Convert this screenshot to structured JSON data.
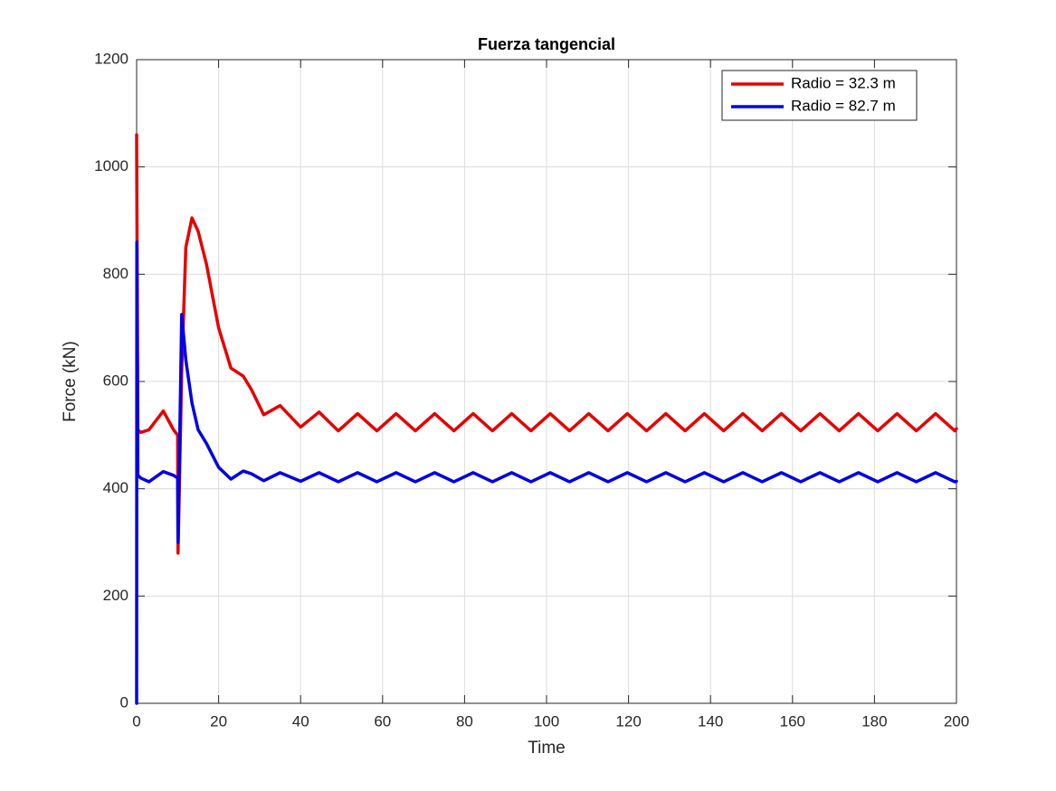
{
  "chart_data": {
    "type": "line",
    "title": "Fuerza tangencial",
    "xlabel": "Time",
    "ylabel": "Force (kN)",
    "x": [
      0,
      0.05,
      0.3,
      1,
      3,
      6.5,
      9,
      10,
      10.1,
      11,
      12,
      13.5,
      15,
      17,
      20,
      23,
      26,
      28,
      31,
      35,
      40,
      44.5,
      49.2,
      53.9,
      58.6,
      63.3,
      68.0,
      72.7,
      77.4,
      82.1,
      86.8,
      91.5,
      96.2,
      100.9,
      105.6,
      110.3,
      115.0,
      119.7,
      124.4,
      129.1,
      133.8,
      138.5,
      143.2,
      147.9,
      152.6,
      157.3,
      162.0,
      166.7,
      171.4,
      176.1,
      180.8,
      185.5,
      190.2,
      194.9,
      199.6,
      200
    ],
    "series": [
      {
        "name": "Radio = 32.3 m",
        "color": "#e60000",
        "values": [
          1060,
          950,
          510,
          505,
          510,
          545,
          510,
          500,
          280,
          620,
          850,
          905,
          880,
          820,
          700,
          625,
          610,
          585,
          538,
          555,
          515,
          543,
          508,
          540,
          508,
          540,
          508,
          540,
          508,
          540,
          508,
          540,
          508,
          540,
          508,
          540,
          508,
          540,
          508,
          540,
          508,
          540,
          508,
          540,
          508,
          540,
          508,
          540,
          508,
          540,
          508,
          540,
          508,
          540,
          508,
          512
        ]
      },
      {
        "name": "Radio = 82.7 m",
        "color": "#0000e6",
        "values": [
          0,
          860,
          425,
          420,
          413,
          432,
          425,
          420,
          300,
          725,
          640,
          560,
          510,
          485,
          440,
          418,
          433,
          428,
          415,
          430,
          414,
          430,
          413,
          430,
          413,
          430,
          413,
          430,
          413,
          430,
          413,
          430,
          413,
          430,
          413,
          430,
          413,
          430,
          413,
          430,
          413,
          430,
          413,
          430,
          413,
          430,
          413,
          430,
          413,
          430,
          413,
          430,
          413,
          430,
          413,
          414
        ]
      }
    ],
    "xlim": [
      0,
      200
    ],
    "xticks": [
      0,
      20,
      40,
      60,
      80,
      100,
      120,
      140,
      160,
      180,
      200
    ],
    "ylim": [
      0,
      1200
    ],
    "yticks": [
      0,
      200,
      400,
      600,
      800,
      1000,
      1200
    ],
    "grid": true,
    "legend": "upper right"
  }
}
